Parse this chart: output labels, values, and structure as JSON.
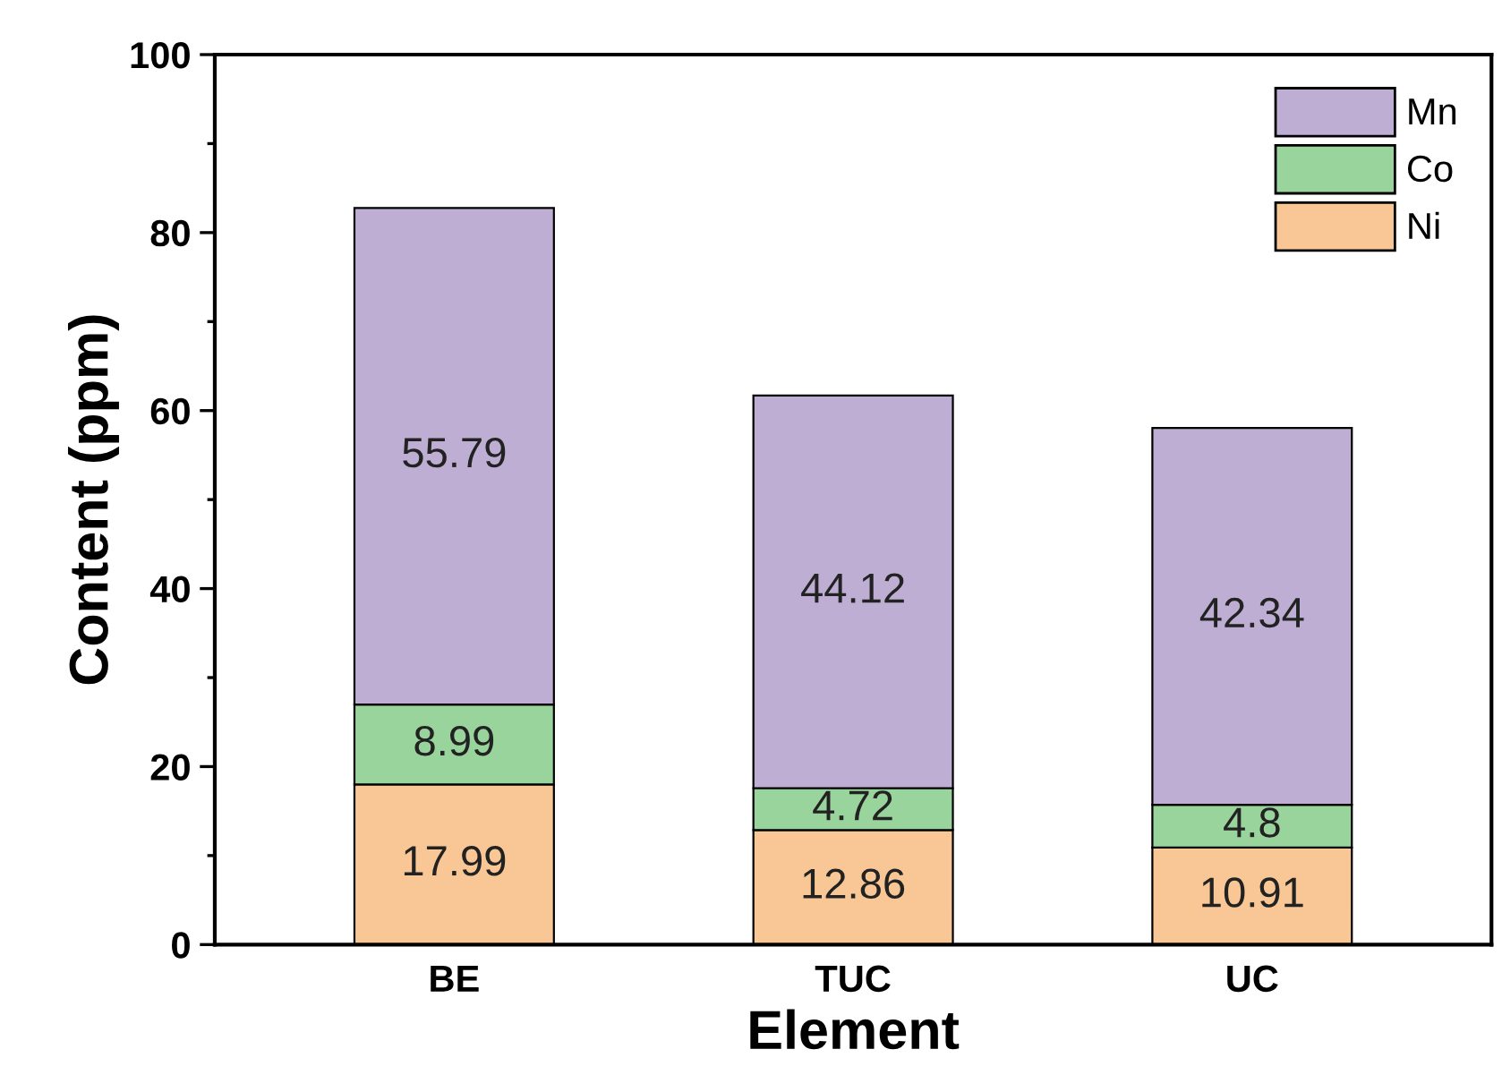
{
  "chart_data": {
    "type": "bar",
    "stacked": true,
    "xlabel": "Element",
    "ylabel": "Content (ppm)",
    "categories": [
      "BE",
      "TUC",
      "UC"
    ],
    "series": [
      {
        "name": "Ni",
        "color": "#f8c795",
        "values": [
          17.99,
          12.86,
          10.91
        ]
      },
      {
        "name": "Co",
        "color": "#98d49c",
        "values": [
          8.99,
          4.72,
          4.8
        ]
      },
      {
        "name": "Mn",
        "color": "#bfaed4",
        "values": [
          55.79,
          44.12,
          42.34
        ]
      }
    ],
    "ylim": [
      0,
      100
    ],
    "yticks": [
      0,
      {
        "value": 10,
        "label": null
      },
      20,
      {
        "value": 30,
        "label": null
      },
      40,
      {
        "value": 50,
        "label": null
      },
      60,
      {
        "value": 70,
        "label": null
      },
      80,
      {
        "value": 90,
        "label": null
      },
      100
    ],
    "data_labels": true,
    "legend": "top right",
    "grid": false
  }
}
